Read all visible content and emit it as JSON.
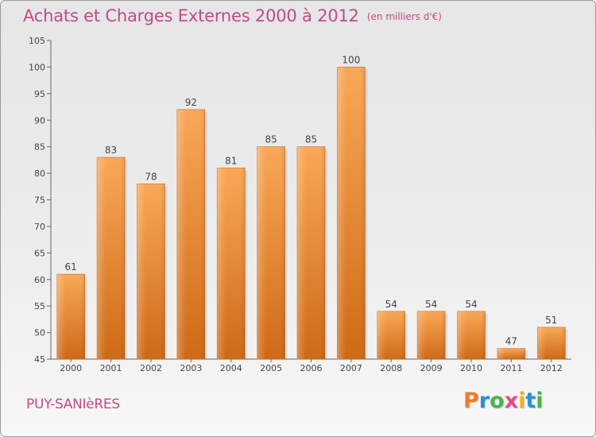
{
  "header": {
    "title": "Achats et Charges Externes 2000 à 2012",
    "unit": "(en milliers d'€)"
  },
  "footer": {
    "place": "PUY-SANIèRES",
    "logo": "Proxiti"
  },
  "colors": {
    "title": "#c04a8a",
    "bar_top": "#f8a553",
    "bar_bottom": "#d06d1a",
    "axis": "#555555"
  },
  "chart_data": {
    "type": "bar",
    "title": "Achats et Charges Externes 2000 à 2012",
    "subtitle": "(en milliers d'€)",
    "categories": [
      "2000",
      "2001",
      "2002",
      "2003",
      "2004",
      "2005",
      "2006",
      "2007",
      "2008",
      "2009",
      "2010",
      "2011",
      "2012"
    ],
    "values": [
      61,
      83,
      78,
      92,
      81,
      85,
      85,
      100,
      54,
      54,
      54,
      47,
      51
    ],
    "ylim": [
      45,
      105
    ],
    "yticks": [
      45,
      50,
      55,
      60,
      65,
      70,
      75,
      80,
      85,
      90,
      95,
      100,
      105
    ],
    "grid": false,
    "xlabel": "",
    "ylabel": ""
  }
}
